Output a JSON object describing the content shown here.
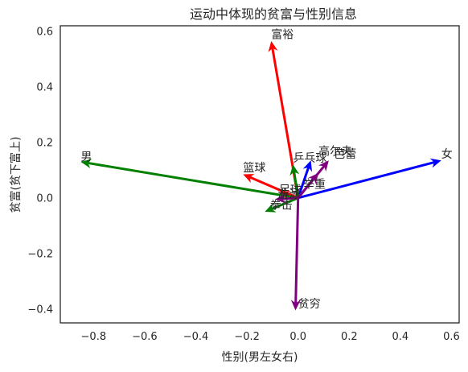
{
  "chart_data": {
    "type": "quiver",
    "title": "运动中体现的贫富与性别信息",
    "xlabel": "性别(男左女右)",
    "ylabel": "贫富(贫下富上)",
    "xlim": [
      -0.93,
      0.63
    ],
    "ylim": [
      -0.45,
      0.62
    ],
    "xticks": [
      -0.8,
      -0.6,
      -0.4,
      -0.2,
      0.0,
      0.2,
      0.4,
      0.6
    ],
    "yticks": [
      -0.4,
      -0.2,
      0.0,
      0.2,
      0.4,
      0.6
    ],
    "xtick_labels": [
      "−0.8",
      "−0.6",
      "−0.4",
      "−0.2",
      "0.0",
      "0.2",
      "0.4",
      "0.6"
    ],
    "ytick_labels": [
      "−0.4",
      "−0.2",
      "0.0",
      "0.2",
      "0.4",
      "0.6"
    ],
    "grid": false,
    "origin": [
      0,
      0
    ],
    "series": [
      {
        "color": "#ff0000",
        "points": [
          {
            "label": "富裕",
            "x": -0.105,
            "y": 0.565
          },
          {
            "label": "篮球",
            "x": -0.215,
            "y": 0.085
          },
          {
            "label": "足球",
            "x": -0.075,
            "y": 0.02
          }
        ]
      },
      {
        "color": "#0000ff",
        "points": [
          {
            "label": "女",
            "x": 0.56,
            "y": 0.135
          },
          {
            "label": "乒乓球",
            "x": 0.05,
            "y": 0.135
          }
        ]
      },
      {
        "color": "#008000",
        "points": [
          {
            "label": "男",
            "x": -0.85,
            "y": 0.13
          },
          {
            "label": "举重",
            "x": -0.02,
            "y": 0.12
          },
          {
            "label": "拳击",
            "x": -0.13,
            "y": -0.05
          }
        ]
      },
      {
        "color": "#800080",
        "points": [
          {
            "label": "贫穷",
            "x": -0.01,
            "y": -0.405
          },
          {
            "label": "高尔夫",
            "x": 0.12,
            "y": 0.135
          },
          {
            "label": "芭蕾",
            "x": 0.08,
            "y": 0.09
          },
          {
            "label": "游泳",
            "x": -0.09,
            "y": -0.005
          }
        ]
      }
    ],
    "label_positions": {
      "富裕": [
        -0.105,
        0.575
      ],
      "篮球": [
        -0.215,
        0.095
      ],
      "足球": [
        -0.075,
        0.015
      ],
      "女": [
        0.56,
        0.145
      ],
      "乒乓球": [
        -0.02,
        0.13
      ],
      "男": [
        -0.85,
        0.135
      ],
      "举重": [
        0.02,
        0.035
      ],
      "拳击": [
        -0.11,
        -0.04
      ],
      "贫穷": [
        0.0,
        -0.395
      ],
      "高尔夫": [
        0.08,
        0.155
      ],
      "芭蕾": [
        0.14,
        0.145
      ],
      "游泳": [
        -0.08,
        0.0
      ]
    }
  }
}
